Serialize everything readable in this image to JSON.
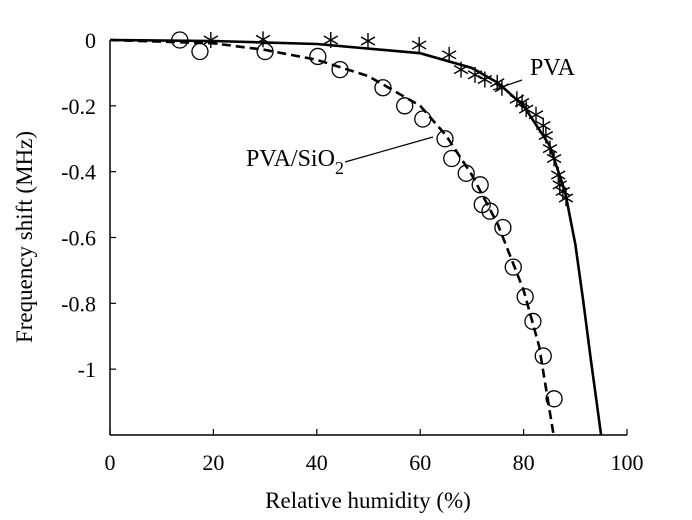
{
  "chart_data": {
    "type": "scatter",
    "title": "",
    "xlabel": "Relative humidity (%)",
    "ylabel": "Frequency shift (MHz)",
    "xlim": [
      0,
      100
    ],
    "ylim": [
      -1.2,
      0
    ],
    "xticks": [
      0,
      20,
      40,
      60,
      80,
      100
    ],
    "xtick_labels": [
      "0",
      "20",
      "40",
      "60",
      "80",
      "100"
    ],
    "yticks": [
      0,
      -0.2,
      -0.4,
      -0.6,
      -0.8,
      -1
    ],
    "ytick_labels": [
      "0",
      "-0.2",
      "-0.4",
      "-0.6",
      "-0.8",
      "-1"
    ],
    "grid": false,
    "series": [
      {
        "name": "PVA",
        "marker": "asterisk",
        "points": [
          [
            19.5,
            0
          ],
          [
            29.6,
            0.002
          ],
          [
            42.7,
            0
          ],
          [
            49.9,
            -0.003
          ],
          [
            59.8,
            -0.015
          ],
          [
            65.6,
            -0.045
          ],
          [
            67.9,
            -0.09
          ],
          [
            70.6,
            -0.106
          ],
          [
            72.5,
            -0.12
          ],
          [
            74.9,
            -0.13
          ],
          [
            75.8,
            -0.145
          ],
          [
            78.7,
            -0.18
          ],
          [
            79.7,
            -0.19
          ],
          [
            80.5,
            -0.21
          ],
          [
            82.4,
            -0.227
          ],
          [
            83.8,
            -0.26
          ],
          [
            84.3,
            -0.29
          ],
          [
            85.1,
            -0.33
          ],
          [
            85.9,
            -0.36
          ],
          [
            86.7,
            -0.41
          ],
          [
            87.0,
            -0.44
          ],
          [
            87.6,
            -0.46
          ],
          [
            88.2,
            -0.48
          ]
        ],
        "fit_style": "solid",
        "fit": [
          [
            0,
            0
          ],
          [
            20,
            -0.003
          ],
          [
            40,
            -0.012
          ],
          [
            60,
            -0.04
          ],
          [
            70,
            -0.085
          ],
          [
            75,
            -0.13
          ],
          [
            80,
            -0.2
          ],
          [
            85,
            -0.32
          ],
          [
            88,
            -0.46
          ],
          [
            90,
            -0.62
          ],
          [
            91.5,
            -0.79
          ],
          [
            93,
            -0.97
          ],
          [
            95,
            -1.2
          ]
        ]
      },
      {
        "name": "PVA/SiO2",
        "marker": "circle",
        "points": [
          [
            13.5,
            0
          ],
          [
            17.4,
            -0.035
          ],
          [
            30,
            -0.035
          ],
          [
            40.2,
            -0.05
          ],
          [
            44.5,
            -0.09
          ],
          [
            52.8,
            -0.145
          ],
          [
            57,
            -0.2
          ],
          [
            60.5,
            -0.24
          ],
          [
            64.8,
            -0.3
          ],
          [
            66.1,
            -0.36
          ],
          [
            68.9,
            -0.405
          ],
          [
            71.6,
            -0.44
          ],
          [
            72,
            -0.5
          ],
          [
            73.5,
            -0.52
          ],
          [
            76,
            -0.57
          ],
          [
            78,
            -0.69
          ],
          [
            80.3,
            -0.78
          ],
          [
            81.8,
            -0.855
          ],
          [
            83.8,
            -0.96
          ],
          [
            85.9,
            -1.09
          ]
        ],
        "fit_style": "dashed",
        "fit": [
          [
            0,
            0
          ],
          [
            20,
            -0.01
          ],
          [
            30,
            -0.03
          ],
          [
            40,
            -0.06
          ],
          [
            50,
            -0.11
          ],
          [
            60,
            -0.2
          ],
          [
            65,
            -0.29
          ],
          [
            70,
            -0.41
          ],
          [
            75,
            -0.56
          ],
          [
            80,
            -0.76
          ],
          [
            83,
            -0.93
          ],
          [
            85.8,
            -1.2
          ]
        ]
      }
    ],
    "annotations": [
      {
        "text": "PVA",
        "series": "PVA"
      },
      {
        "text": "PVA/SiO",
        "subscript": "2",
        "series": "PVA/SiO2"
      }
    ]
  }
}
